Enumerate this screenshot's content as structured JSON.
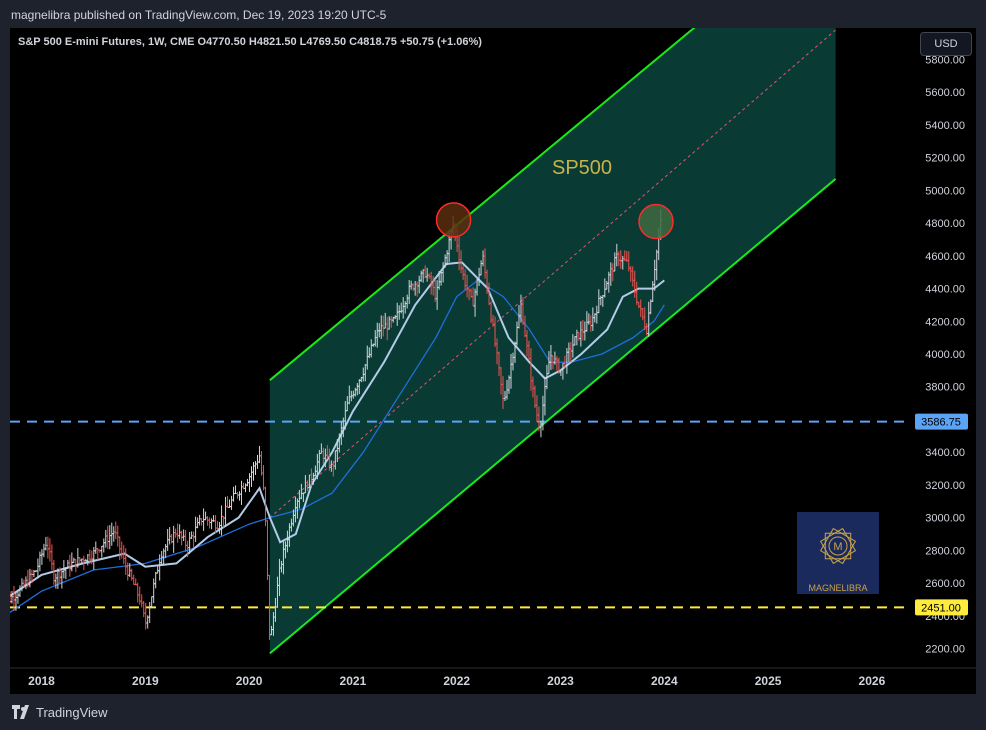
{
  "header": {
    "published_line": "magnelibra published on TradingView.com, Dec 19, 2023 19:20 UTC-5"
  },
  "chart_header": {
    "symbol_line": "S&P 500 E-mini Futures, 1W, CME  O4770.50  H4821.50  L4769.50  C4818.75  +50.75 (+1.06%)"
  },
  "currency_button": "USD",
  "watermark_text": "MAGNELIBRA",
  "footer": {
    "brand": "TradingView"
  },
  "colors": {
    "channel_line": "#1be81b",
    "channel_fill": "#0b3d37",
    "midline": "#e0527a",
    "support_blue": "#5ba3f5",
    "support_yellow": "#ffeb3b",
    "ma_fast": "#b2cbe8",
    "ma_slow": "#1e6fd9",
    "candle_up": "#d1d4dc",
    "candle_down": "#ef5350"
  },
  "chart_data": {
    "type": "candlestick",
    "title": "SP500",
    "ylim": [
      2080,
      5940
    ],
    "y_ticks": [
      "2200.00",
      "2400.00",
      "2600.00",
      "2800.00",
      "3000.00",
      "3200.00",
      "3400.00",
      "3600.00",
      "3800.00",
      "4000.00",
      "4200.00",
      "4400.00",
      "4600.00",
      "4800.00",
      "5000.00",
      "5200.00",
      "5400.00",
      "5600.00",
      "5800.00"
    ],
    "x_range": [
      2017.6,
      2026.8
    ],
    "x_ticks": [
      "2018",
      "2019",
      "2020",
      "2021",
      "2022",
      "2023",
      "2024",
      "2025",
      "2026"
    ],
    "price_labels": [
      {
        "value": 3586.75,
        "text": "3586.75",
        "color": "#5ba3f5",
        "text_color": "#000"
      },
      {
        "value": 2451.0,
        "text": "2451.00",
        "color": "#ffeb3b",
        "text_color": "#000"
      }
    ],
    "horizontal_lines": [
      {
        "value": 3586.75,
        "style": "dashed",
        "color": "#5ba3f5"
      },
      {
        "value": 2451.0,
        "style": "dashed",
        "color": "#ffeb3b"
      }
    ],
    "channel": {
      "upper": [
        [
          2020.2,
          3840
        ],
        [
          2024.3,
          6000
        ]
      ],
      "lower": [
        [
          2020.2,
          2170
        ],
        [
          2025.65,
          5070
        ]
      ],
      "end_x": 2025.65,
      "mid": [
        [
          2020.2,
          3000
        ],
        [
          2025.65,
          5980
        ]
      ]
    },
    "annotations": [
      {
        "type": "circle",
        "x": 2021.97,
        "y": 4820,
        "fill": "#5a2e0e",
        "stroke": "#ff2a2a"
      },
      {
        "type": "circle",
        "x": 2023.92,
        "y": 4810,
        "fill": "#3e6a3f",
        "stroke": "#ff2a2a"
      }
    ],
    "price_path": [
      [
        2017.6,
        2450
      ],
      [
        2017.8,
        2560
      ],
      [
        2017.95,
        2680
      ],
      [
        2018.05,
        2860
      ],
      [
        2018.12,
        2640
      ],
      [
        2018.3,
        2720
      ],
      [
        2018.5,
        2780
      ],
      [
        2018.7,
        2920
      ],
      [
        2018.8,
        2720
      ],
      [
        2018.95,
        2500
      ],
      [
        2019.0,
        2350
      ],
      [
        2019.15,
        2780
      ],
      [
        2019.3,
        2920
      ],
      [
        2019.4,
        2830
      ],
      [
        2019.55,
        3000
      ],
      [
        2019.7,
        2960
      ],
      [
        2019.85,
        3120
      ],
      [
        2020.0,
        3250
      ],
      [
        2020.1,
        3380
      ],
      [
        2020.15,
        3100
      ],
      [
        2020.2,
        2230
      ],
      [
        2020.3,
        2700
      ],
      [
        2020.45,
        3100
      ],
      [
        2020.6,
        3250
      ],
      [
        2020.7,
        3400
      ],
      [
        2020.8,
        3300
      ],
      [
        2020.95,
        3700
      ],
      [
        2021.1,
        3900
      ],
      [
        2021.25,
        4150
      ],
      [
        2021.4,
        4200
      ],
      [
        2021.55,
        4400
      ],
      [
        2021.7,
        4500
      ],
      [
        2021.8,
        4350
      ],
      [
        2021.97,
        4800
      ],
      [
        2022.05,
        4500
      ],
      [
        2022.15,
        4300
      ],
      [
        2022.25,
        4600
      ],
      [
        2022.35,
        4150
      ],
      [
        2022.45,
        3700
      ],
      [
        2022.5,
        3850
      ],
      [
        2022.62,
        4300
      ],
      [
        2022.75,
        3700
      ],
      [
        2022.8,
        3550
      ],
      [
        2022.9,
        4000
      ],
      [
        2023.0,
        3900
      ],
      [
        2023.15,
        4100
      ],
      [
        2023.3,
        4200
      ],
      [
        2023.45,
        4450
      ],
      [
        2023.55,
        4600
      ],
      [
        2023.65,
        4550
      ],
      [
        2023.75,
        4300
      ],
      [
        2023.83,
        4150
      ],
      [
        2023.9,
        4500
      ],
      [
        2023.97,
        4818
      ]
    ],
    "ma_fast_path": [
      [
        2017.6,
        2480
      ],
      [
        2018.0,
        2650
      ],
      [
        2018.4,
        2720
      ],
      [
        2018.8,
        2780
      ],
      [
        2019.0,
        2700
      ],
      [
        2019.3,
        2720
      ],
      [
        2019.6,
        2880
      ],
      [
        2019.9,
        3000
      ],
      [
        2020.1,
        3180
      ],
      [
        2020.2,
        3000
      ],
      [
        2020.3,
        2850
      ],
      [
        2020.45,
        2900
      ],
      [
        2020.6,
        3200
      ],
      [
        2020.8,
        3400
      ],
      [
        2021.0,
        3650
      ],
      [
        2021.3,
        3950
      ],
      [
        2021.6,
        4300
      ],
      [
        2021.9,
        4550
      ],
      [
        2022.05,
        4560
      ],
      [
        2022.3,
        4400
      ],
      [
        2022.5,
        4100
      ],
      [
        2022.7,
        3950
      ],
      [
        2022.85,
        3850
      ],
      [
        2023.0,
        3900
      ],
      [
        2023.2,
        4000
      ],
      [
        2023.45,
        4150
      ],
      [
        2023.6,
        4350
      ],
      [
        2023.75,
        4400
      ],
      [
        2023.9,
        4400
      ],
      [
        2024.0,
        4450
      ]
    ],
    "ma_slow_path": [
      [
        2017.6,
        2380
      ],
      [
        2018.0,
        2550
      ],
      [
        2018.5,
        2680
      ],
      [
        2019.0,
        2720
      ],
      [
        2019.5,
        2820
      ],
      [
        2020.0,
        2960
      ],
      [
        2020.2,
        3000
      ],
      [
        2020.5,
        3050
      ],
      [
        2020.8,
        3150
      ],
      [
        2021.1,
        3400
      ],
      [
        2021.5,
        3800
      ],
      [
        2021.8,
        4100
      ],
      [
        2022.0,
        4350
      ],
      [
        2022.2,
        4450
      ],
      [
        2022.45,
        4350
      ],
      [
        2022.7,
        4150
      ],
      [
        2022.9,
        3950
      ],
      [
        2023.1,
        3950
      ],
      [
        2023.4,
        4000
      ],
      [
        2023.7,
        4100
      ],
      [
        2023.9,
        4200
      ],
      [
        2024.0,
        4300
      ]
    ]
  }
}
